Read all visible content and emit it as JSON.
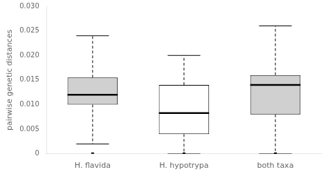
{
  "chart_data": {
    "type": "box",
    "categories": [
      "H. flavida",
      "H. hypotrypa",
      "both taxa"
    ],
    "q1": [
      0.01,
      0.004,
      0.008
    ],
    "median": [
      0.012,
      0.0083,
      0.014
    ],
    "q3": [
      0.0155,
      0.014,
      0.016
    ],
    "whisker_low": [
      0.002,
      0.0,
      0.0
    ],
    "whisker_high": [
      0.024,
      0.02,
      0.026
    ],
    "outliers": [
      [
        0.0
      ],
      [
        0.0
      ],
      [
        0.0
      ]
    ],
    "colors": [
      "#d0d0d0",
      "#ffffff",
      "#d0d0d0"
    ],
    "ylabel": "pairwise genetic distances",
    "ylim": [
      0.0,
      0.03
    ],
    "yticks": [
      0,
      0.005,
      {
        "value": 0.01,
        "label": "0.010"
      },
      0.015,
      {
        "value": 0.02,
        "label": "0.020"
      },
      0.025,
      {
        "value": 0.03,
        "label": "0.030"
      }
    ],
    "grid": false
  }
}
